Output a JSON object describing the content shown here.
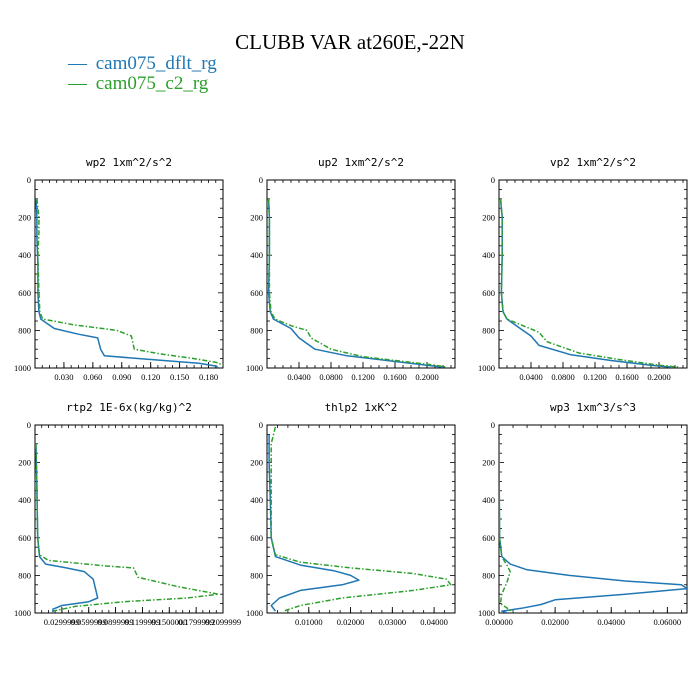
{
  "title": "CLUBB VAR at260E,-22N",
  "legend": [
    {
      "marker": "—",
      "label": "cam075_dflt_rg",
      "color": "#1f77b4",
      "dash": false
    },
    {
      "marker": "—",
      "label": "cam075_c2_rg",
      "color": "#2ca02c",
      "dash": true
    }
  ],
  "chart_data": [
    {
      "type": "line",
      "title": "wp2  1xm^2/s^2",
      "xlim": [
        0.0,
        0.195
      ],
      "ylim": [
        1000,
        0
      ],
      "ylabel": "",
      "xlabel": "",
      "xticks": [
        0.03,
        0.06,
        0.09,
        0.12,
        0.15,
        0.18
      ],
      "xticklabels": [
        "0.030",
        "0.060",
        "0.090",
        "0.120",
        "0.150",
        "0.180"
      ],
      "yticks": [
        0,
        200,
        400,
        600,
        800,
        1000
      ],
      "series": [
        {
          "name": "cam075_dflt_rg",
          "color": "#1f77b4",
          "dash": false,
          "x": [
            0.001,
            0.002,
            0.002,
            0.003,
            0.003,
            0.004,
            0.006,
            0.02,
            0.045,
            0.065,
            0.068,
            0.072,
            0.12,
            0.17,
            0.188,
            0.19
          ],
          "y": [
            100,
            200,
            300,
            450,
            600,
            700,
            740,
            790,
            820,
            840,
            900,
            935,
            955,
            975,
            990,
            1000
          ]
        },
        {
          "name": "cam075_c2_rg",
          "color": "#2ca02c",
          "dash": true,
          "x": [
            0.002,
            0.004,
            0.004,
            0.003,
            0.004,
            0.005,
            0.008,
            0.04,
            0.085,
            0.1,
            0.103,
            0.13,
            0.165,
            0.188,
            0.195
          ],
          "y": [
            100,
            200,
            280,
            400,
            600,
            700,
            740,
            770,
            800,
            830,
            900,
            925,
            950,
            970,
            985
          ]
        }
      ]
    },
    {
      "type": "line",
      "title": "up2  1xm^2/s^2",
      "xlim": [
        0.0,
        0.235
      ],
      "ylim": [
        1000,
        0
      ],
      "ylabel": "",
      "xlabel": "",
      "xticks": [
        0.04,
        0.08,
        0.12,
        0.16,
        0.2
      ],
      "xticklabels": [
        "0.0400",
        "0.0800",
        "0.1200",
        "0.1600",
        "0.2000"
      ],
      "yticks": [
        0,
        200,
        400,
        600,
        800,
        1000
      ],
      "series": [
        {
          "name": "cam075_dflt_rg",
          "color": "#1f77b4",
          "dash": false,
          "x": [
            0.002,
            0.003,
            0.003,
            0.002,
            0.004,
            0.008,
            0.03,
            0.04,
            0.06,
            0.1,
            0.15,
            0.2,
            0.22
          ],
          "y": [
            100,
            200,
            400,
            600,
            700,
            740,
            790,
            840,
            900,
            935,
            960,
            985,
            995
          ]
        },
        {
          "name": "cam075_c2_rg",
          "color": "#2ca02c",
          "dash": true,
          "x": [
            0.002,
            0.003,
            0.003,
            0.003,
            0.005,
            0.01,
            0.03,
            0.05,
            0.055,
            0.08,
            0.12,
            0.17,
            0.21,
            0.225
          ],
          "y": [
            100,
            200,
            400,
            600,
            700,
            740,
            775,
            800,
            840,
            900,
            940,
            965,
            985,
            995
          ]
        }
      ]
    },
    {
      "type": "line",
      "title": "vp2  1xm^2/s^2",
      "xlim": [
        0.0,
        0.235
      ],
      "ylim": [
        1000,
        0
      ],
      "ylabel": "",
      "xlabel": "",
      "xticks": [
        0.04,
        0.08,
        0.12,
        0.16,
        0.2
      ],
      "xticklabels": [
        "0.0400",
        "0.0800",
        "0.1200",
        "0.1600",
        "0.2000"
      ],
      "yticks": [
        0,
        200,
        400,
        600,
        800,
        1000
      ],
      "series": [
        {
          "name": "cam075_dflt_rg",
          "color": "#1f77b4",
          "dash": false,
          "x": [
            0.002,
            0.004,
            0.004,
            0.003,
            0.005,
            0.01,
            0.025,
            0.04,
            0.05,
            0.09,
            0.14,
            0.19,
            0.215
          ],
          "y": [
            100,
            200,
            400,
            600,
            700,
            740,
            785,
            830,
            880,
            930,
            960,
            985,
            995
          ]
        },
        {
          "name": "cam075_c2_rg",
          "color": "#2ca02c",
          "dash": true,
          "x": [
            0.002,
            0.004,
            0.004,
            0.003,
            0.005,
            0.01,
            0.03,
            0.05,
            0.06,
            0.1,
            0.15,
            0.2,
            0.225
          ],
          "y": [
            100,
            200,
            400,
            600,
            700,
            740,
            775,
            810,
            860,
            920,
            955,
            985,
            995
          ]
        }
      ]
    },
    {
      "type": "line",
      "title": "rtp2  1E-6x(kg/kg)^2",
      "xlim": [
        0.0,
        0.21
      ],
      "ylim": [
        1000,
        0
      ],
      "ylabel": "",
      "xlabel": "",
      "xticks": [
        0.03,
        0.06,
        0.09,
        0.12,
        0.15,
        0.18,
        0.21
      ],
      "xticklabels": [
        "0.0299999",
        "0.0599999",
        "0.0899999",
        "0.1199999",
        "0.1500000",
        "0.1799999",
        "0.2099999"
      ],
      "yticks": [
        0,
        200,
        400,
        600,
        800,
        1000
      ],
      "series": [
        {
          "name": "cam075_dflt_rg",
          "color": "#1f77b4",
          "dash": false,
          "x": [
            0.001,
            0.002,
            0.003,
            0.005,
            0.012,
            0.035,
            0.055,
            0.065,
            0.068,
            0.07,
            0.06,
            0.03,
            0.02,
            0.02
          ],
          "y": [
            100,
            300,
            600,
            700,
            740,
            760,
            780,
            820,
            880,
            920,
            940,
            960,
            980,
            995
          ]
        },
        {
          "name": "cam075_c2_rg",
          "color": "#2ca02c",
          "dash": true,
          "x": [
            0.001,
            0.002,
            0.003,
            0.005,
            0.015,
            0.08,
            0.11,
            0.115,
            0.16,
            0.205,
            0.17,
            0.1,
            0.045,
            0.02
          ],
          "y": [
            100,
            300,
            600,
            690,
            720,
            750,
            760,
            810,
            860,
            900,
            920,
            940,
            965,
            990
          ]
        }
      ]
    },
    {
      "type": "line",
      "title": "thlp2  1xK^2",
      "xlim": [
        0.0,
        0.045
      ],
      "ylim": [
        1000,
        0
      ],
      "ylabel": "",
      "xlabel": "",
      "xticks": [
        0.01,
        0.02,
        0.03,
        0.04
      ],
      "xticklabels": [
        "0.01000",
        "0.02000",
        "0.03000",
        "0.04000"
      ],
      "yticks": [
        0,
        200,
        400,
        600,
        800,
        1000
      ],
      "series": [
        {
          "name": "cam075_dflt_rg",
          "color": "#1f77b4",
          "dash": false,
          "x": [
            0.0005,
            0.0005,
            0.0008,
            0.001,
            0.002,
            0.008,
            0.016,
            0.02,
            0.022,
            0.018,
            0.008,
            0.003,
            0.001,
            0.002
          ],
          "y": [
            50,
            200,
            400,
            600,
            700,
            745,
            775,
            800,
            825,
            850,
            880,
            920,
            960,
            990
          ]
        },
        {
          "name": "cam075_c2_rg",
          "color": "#2ca02c",
          "dash": true,
          "x": [
            0.002,
            0.001,
            0.001,
            0.001,
            0.002,
            0.008,
            0.02,
            0.035,
            0.043,
            0.044,
            0.035,
            0.018,
            0.008,
            0.004
          ],
          "y": [
            10,
            100,
            300,
            600,
            690,
            730,
            760,
            790,
            820,
            850,
            880,
            920,
            960,
            990
          ]
        }
      ]
    },
    {
      "type": "line",
      "title": "wp3  1xm^3/s^3",
      "xlim": [
        0.0,
        0.067
      ],
      "ylim": [
        1000,
        0
      ],
      "ylabel": "",
      "xlabel": "",
      "xticks": [
        0.0,
        0.02,
        0.04,
        0.06
      ],
      "xticklabels": [
        "0.00000",
        "0.02000",
        "0.04000",
        "0.06000"
      ],
      "yticks": [
        0,
        200,
        400,
        600,
        800,
        1000
      ],
      "series": [
        {
          "name": "cam075_dflt_rg",
          "color": "#1f77b4",
          "dash": false,
          "x": [
            0.0,
            0.0001,
            0.0002,
            0.001,
            0.004,
            0.01,
            0.025,
            0.045,
            0.065,
            0.067,
            0.045,
            0.02,
            0.015,
            0.008,
            0.001,
            0.003
          ],
          "y": [
            100,
            400,
            600,
            700,
            740,
            770,
            800,
            830,
            850,
            870,
            900,
            930,
            955,
            975,
            990,
            1000
          ]
        },
        {
          "name": "cam075_c2_rg",
          "color": "#2ca02c",
          "dash": true,
          "x": [
            0.0,
            0.0002,
            0.001,
            0.003,
            0.004,
            0.003,
            0.001,
            0.0005,
            0.003,
            0.005
          ],
          "y": [
            100,
            600,
            700,
            750,
            780,
            830,
            900,
            950,
            975,
            995
          ]
        }
      ]
    }
  ]
}
